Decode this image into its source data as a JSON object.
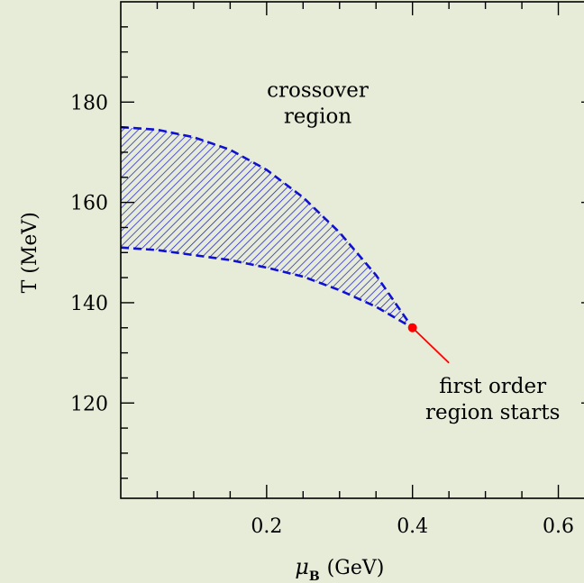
{
  "chart_data": {
    "type": "area",
    "title": "",
    "xlabel_symbol": "μ",
    "xlabel_subscript": "B",
    "xlabel_unit": "(GeV)",
    "ylabel": "T (MeV)",
    "xlim": [
      0.0,
      0.65
    ],
    "ylim": [
      101,
      200
    ],
    "xticks_major": [
      0.2,
      0.4,
      0.6
    ],
    "xticks_minor_step": 0.05,
    "yticks_major": [
      120,
      140,
      160,
      180
    ],
    "yticks_minor_step": 5,
    "grid": false,
    "series": [
      {
        "x": [
          0.0,
          0.05,
          0.1,
          0.15,
          0.2,
          0.25,
          0.3,
          0.35,
          0.4
        ],
        "upper": [
          175,
          174.5,
          173,
          170.5,
          166.5,
          161,
          154,
          145.5,
          135
        ],
        "lower": [
          151,
          150.5,
          149.5,
          148.5,
          147,
          145.2,
          142.5,
          139.2,
          135
        ]
      }
    ],
    "critical_point": {
      "x": 0.4,
      "y": 135
    },
    "first_order_line": {
      "x": [
        0.4,
        0.45
      ],
      "y": [
        135,
        128
      ]
    },
    "colors": {
      "band": "#1010d0",
      "critical": "#ff0000"
    },
    "annotations": [
      {
        "lines": [
          "crossover",
          "region"
        ],
        "x": 0.27,
        "y": 181
      },
      {
        "lines": [
          "first order",
          "region starts"
        ],
        "x": 0.51,
        "y": 122
      }
    ]
  }
}
